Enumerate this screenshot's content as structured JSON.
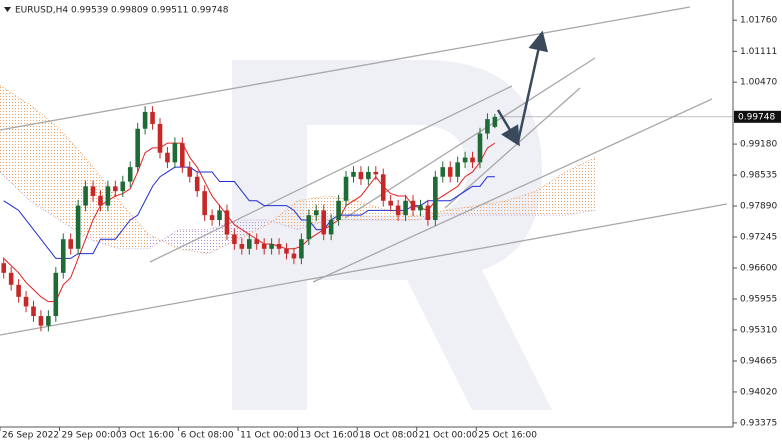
{
  "chart_data": {
    "type": "candlestick",
    "title": "EURUSD,H4  0.99539 0.99809 0.99511 0.99748",
    "xlim": [
      0,
      197
    ],
    "ylim": [
      0.9329,
      1.0218
    ],
    "grid": false,
    "xticks": [
      {
        "value": 0,
        "label": "26 Sep 2022"
      },
      {
        "value": 16,
        "label": "29 Sep 00:00"
      },
      {
        "value": 32,
        "label": "3 Oct 16:00"
      },
      {
        "value": 48,
        "label": "6 Oct 08:00"
      },
      {
        "value": 64,
        "label": "11 Oct 00:00"
      },
      {
        "value": 80,
        "label": "13 Oct 16:00"
      },
      {
        "value": 96,
        "label": "18 Oct 08:00"
      },
      {
        "value": 112,
        "label": "21 Oct 00:00"
      },
      {
        "value": 128,
        "label": "25 Oct 16:00"
      }
    ],
    "yticks": [
      {
        "value": 1.0176,
        "label": "1.01760"
      },
      {
        "value": 1.01111,
        "label": "1.01111"
      },
      {
        "value": 1.0047,
        "label": "1.00470"
      },
      {
        "value": 0.9918,
        "label": "0.99180"
      },
      {
        "value": 0.98535,
        "label": "0.98535"
      },
      {
        "value": 0.9789,
        "label": "0.97890"
      },
      {
        "value": 0.97245,
        "label": "0.97245"
      },
      {
        "value": 0.966,
        "label": "0.96600"
      },
      {
        "value": 0.95955,
        "label": "0.95955"
      },
      {
        "value": 0.9531,
        "label": "0.95310"
      },
      {
        "value": 0.94665,
        "label": "0.94665"
      },
      {
        "value": 0.9402,
        "label": "0.94020"
      },
      {
        "value": 0.93375,
        "label": "0.93375"
      }
    ],
    "up_color": "#1e6b35",
    "down_color": "#c62828",
    "candles": {
      "x": [
        1,
        3,
        5,
        7,
        9,
        11,
        13,
        15,
        17,
        19,
        21,
        23,
        25,
        27,
        29,
        31,
        33,
        35,
        37,
        39,
        41,
        43,
        45,
        47,
        49,
        51,
        53,
        55,
        57,
        59,
        61,
        63,
        65,
        67,
        69,
        71,
        73,
        75,
        77,
        79,
        81,
        83,
        85,
        87,
        89,
        91,
        93,
        95,
        97,
        99,
        101,
        103,
        105,
        107,
        109,
        111,
        113,
        115,
        117,
        119,
        121,
        123,
        125,
        127,
        129,
        131,
        133
      ],
      "open": [
        0.967,
        0.965,
        0.9625,
        0.96,
        0.958,
        0.956,
        0.954,
        0.956,
        0.965,
        0.972,
        0.97,
        0.979,
        0.983,
        0.981,
        0.979,
        0.983,
        0.982,
        0.984,
        0.987,
        0.995,
        0.9985,
        0.996,
        0.99,
        0.988,
        0.992,
        0.987,
        0.985,
        0.982,
        0.977,
        0.976,
        0.978,
        0.973,
        0.971,
        0.97,
        0.972,
        0.971,
        0.97,
        0.971,
        0.97,
        0.969,
        0.968,
        0.972,
        0.977,
        0.978,
        0.973,
        0.976,
        0.98,
        0.985,
        0.986,
        0.9845,
        0.986,
        0.9855,
        0.98,
        0.979,
        0.977,
        0.98,
        0.978,
        0.979,
        0.976,
        0.985,
        0.987,
        0.985,
        0.988,
        0.989,
        0.988,
        0.994,
        0.99539
      ],
      "high": [
        0.9682,
        0.9662,
        0.9637,
        0.9612,
        0.9592,
        0.9572,
        0.9572,
        0.9662,
        0.9732,
        0.9732,
        0.9802,
        0.9842,
        0.9842,
        0.9822,
        0.9842,
        0.9842,
        0.9852,
        0.9882,
        0.9962,
        0.9997,
        0.9997,
        0.9972,
        0.9912,
        0.9932,
        0.9932,
        0.9882,
        0.9862,
        0.9832,
        0.9782,
        0.9792,
        0.9792,
        0.9742,
        0.9722,
        0.9732,
        0.9732,
        0.9722,
        0.9722,
        0.9722,
        0.9712,
        0.9702,
        0.9732,
        0.9782,
        0.9792,
        0.9792,
        0.9772,
        0.9812,
        0.9862,
        0.9872,
        0.9872,
        0.9872,
        0.9872,
        0.9867,
        0.9812,
        0.9802,
        0.9812,
        0.9812,
        0.9802,
        0.9802,
        0.9862,
        0.9882,
        0.9882,
        0.9892,
        0.9902,
        0.9902,
        0.9952,
        0.9982,
        0.99809
      ],
      "low": [
        0.9638,
        0.9613,
        0.9588,
        0.9568,
        0.9548,
        0.9528,
        0.9528,
        0.9548,
        0.9638,
        0.9688,
        0.9688,
        0.9778,
        0.9798,
        0.9778,
        0.9778,
        0.9808,
        0.9808,
        0.9828,
        0.9858,
        0.9938,
        0.9948,
        0.9888,
        0.9868,
        0.9868,
        0.9858,
        0.9838,
        0.9808,
        0.9758,
        0.9748,
        0.9748,
        0.9718,
        0.9698,
        0.9688,
        0.9688,
        0.9698,
        0.9688,
        0.9688,
        0.9688,
        0.9678,
        0.9668,
        0.9668,
        0.9708,
        0.9758,
        0.9718,
        0.9718,
        0.9748,
        0.9788,
        0.9838,
        0.9833,
        0.9833,
        0.9843,
        0.9788,
        0.9778,
        0.9758,
        0.9758,
        0.9768,
        0.9768,
        0.9748,
        0.9748,
        0.9838,
        0.9838,
        0.9838,
        0.9868,
        0.9868,
        0.9868,
        0.9928,
        0.99511
      ],
      "close": [
        0.965,
        0.9625,
        0.96,
        0.958,
        0.956,
        0.954,
        0.956,
        0.965,
        0.972,
        0.97,
        0.979,
        0.983,
        0.981,
        0.979,
        0.983,
        0.982,
        0.984,
        0.987,
        0.995,
        0.9985,
        0.996,
        0.99,
        0.988,
        0.992,
        0.987,
        0.985,
        0.982,
        0.977,
        0.976,
        0.978,
        0.973,
        0.971,
        0.97,
        0.972,
        0.971,
        0.97,
        0.971,
        0.97,
        0.969,
        0.968,
        0.972,
        0.977,
        0.978,
        0.973,
        0.976,
        0.98,
        0.985,
        0.986,
        0.9845,
        0.986,
        0.9855,
        0.98,
        0.979,
        0.977,
        0.98,
        0.978,
        0.979,
        0.976,
        0.985,
        0.987,
        0.985,
        0.988,
        0.989,
        0.988,
        0.994,
        0.997,
        0.99748
      ]
    },
    "series": [
      {
        "color": "#e02020",
        "values": [
          0.968,
          0.9665,
          0.965,
          0.963,
          0.9615,
          0.96,
          0.959,
          0.959,
          0.9625,
          0.964,
          0.968,
          0.972,
          0.976,
          0.979,
          0.98,
          0.981,
          0.9815,
          0.9825,
          0.986,
          0.99,
          0.991,
          0.991,
          0.992,
          0.992,
          0.992,
          0.989,
          0.987,
          0.984,
          0.981,
          0.979,
          0.977,
          0.975,
          0.974,
          0.973,
          0.972,
          0.971,
          0.971,
          0.9705,
          0.97,
          0.97,
          0.9705,
          0.972,
          0.973,
          0.974,
          0.975,
          0.976,
          0.979,
          0.98,
          0.981,
          0.983,
          0.985,
          0.983,
          0.9815,
          0.981,
          0.981,
          0.979,
          0.9785,
          0.978,
          0.98,
          0.981,
          0.982,
          0.983,
          0.985,
          0.986,
          0.988,
          0.991,
          0.992
        ]
      },
      {
        "color": "#1f2ed0",
        "values": [
          0.98,
          0.979,
          0.978,
          0.976,
          0.974,
          0.972,
          0.97,
          0.968,
          0.968,
          0.968,
          0.969,
          0.969,
          0.969,
          0.972,
          0.972,
          0.972,
          0.974,
          0.976,
          0.977,
          0.98,
          0.983,
          0.985,
          0.986,
          0.987,
          0.987,
          0.987,
          0.986,
          0.986,
          0.986,
          0.984,
          0.984,
          0.984,
          0.982,
          0.98,
          0.98,
          0.979,
          0.979,
          0.979,
          0.979,
          0.978,
          0.976,
          0.976,
          0.974,
          0.974,
          0.976,
          0.977,
          0.977,
          0.977,
          0.977,
          0.978,
          0.978,
          0.978,
          0.978,
          0.978,
          0.978,
          0.979,
          0.979,
          0.98,
          0.98,
          0.98,
          0.98,
          0.981,
          0.982,
          0.983,
          0.983,
          0.985,
          0.985
        ]
      }
    ],
    "cloud": {
      "x": [
        0,
        8,
        16,
        24,
        32,
        40,
        48,
        56,
        64,
        72,
        80,
        88,
        96,
        104,
        112,
        120,
        128,
        136,
        144,
        152,
        160
      ],
      "span_a": [
        1.004,
        1.0,
        0.995,
        0.988,
        0.98,
        0.973,
        0.97,
        0.969,
        0.972,
        0.975,
        0.98,
        0.981,
        0.98,
        0.978,
        0.977,
        0.978,
        0.979,
        0.98,
        0.982,
        0.986,
        0.989
      ],
      "span_b": [
        0.986,
        0.98,
        0.976,
        0.972,
        0.97,
        0.97,
        0.974,
        0.974,
        0.976,
        0.976,
        0.974,
        0.976,
        0.976,
        0.976,
        0.976,
        0.977,
        0.977,
        0.977,
        0.977,
        0.977,
        0.978
      ],
      "up_color": "#f0a060",
      "down_color": "#c0a0d8"
    }
  }
}
